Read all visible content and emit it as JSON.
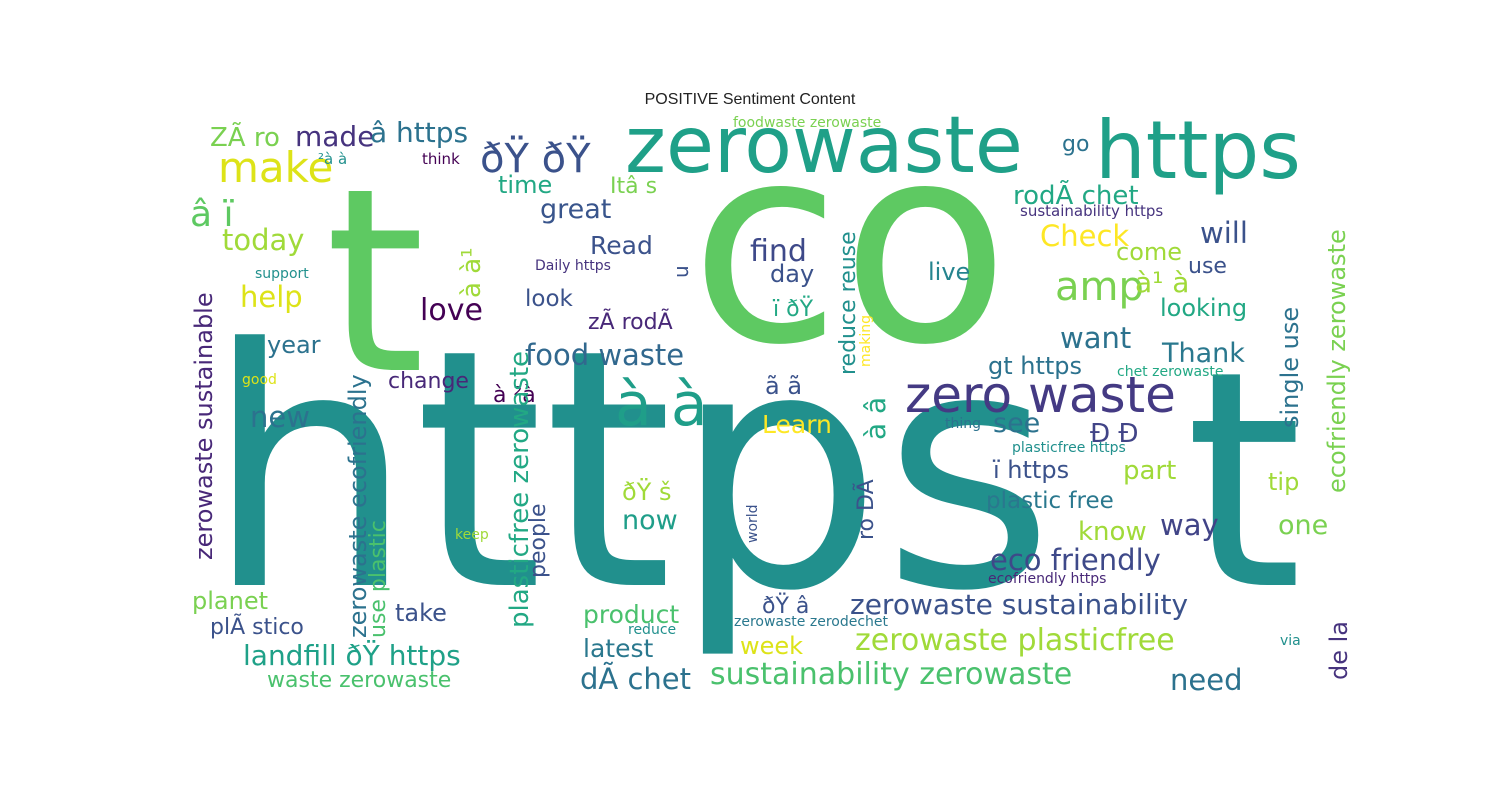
{
  "title": "POSITIVE Sentiment Content",
  "palette": "viridis",
  "words": [
    {
      "text": "https",
      "color": "#21908d"
    },
    {
      "text": "co",
      "color": "#5ec962"
    },
    {
      "text": "t",
      "color": "#5ec962"
    },
    {
      "text": "t",
      "color": "#21908d"
    },
    {
      "text": "https",
      "color": "#1fa088"
    },
    {
      "text": "zerowaste",
      "color": "#1fa088"
    },
    {
      "text": "à à",
      "color": "#1f9e89"
    },
    {
      "text": "zero waste",
      "color": "#443a83"
    },
    {
      "text": "ðŸ ðŸ",
      "color": "#3b528b"
    },
    {
      "text": "make",
      "color": "#dde318"
    },
    {
      "text": "amp",
      "color": "#7ad151"
    },
    {
      "text": "â ï",
      "color": "#5ec962"
    },
    {
      "text": "made",
      "color": "#46337e"
    },
    {
      "text": "â https",
      "color": "#2c728e"
    },
    {
      "text": "ZÃ ro",
      "color": "#7ad151"
    },
    {
      "text": "food waste",
      "color": "#31688e"
    },
    {
      "text": "eco friendly",
      "color": "#3e4989"
    },
    {
      "text": "zerowaste plasticfree",
      "color": "#a0da39"
    },
    {
      "text": "zerowaste sustainability",
      "color": "#3b528b"
    },
    {
      "text": "sustainability zerowaste",
      "color": "#4ac16d"
    },
    {
      "text": "landfill ðŸ https",
      "color": "#1fa188"
    },
    {
      "text": "dÃ chet",
      "color": "#2c728e"
    },
    {
      "text": "need",
      "color": "#2c728e"
    },
    {
      "text": "today",
      "color": "#a0da39"
    },
    {
      "text": "help",
      "color": "#dde318"
    },
    {
      "text": "love",
      "color": "#440154"
    },
    {
      "text": "find",
      "color": "#3e4989"
    },
    {
      "text": "great",
      "color": "#39558c"
    },
    {
      "text": "Read",
      "color": "#3b528b"
    },
    {
      "text": "Check",
      "color": "#fde725"
    },
    {
      "text": "will",
      "color": "#3b528b"
    },
    {
      "text": "live",
      "color": "#25848e"
    },
    {
      "text": "want",
      "color": "#2c728e"
    },
    {
      "text": "Thank",
      "color": "#2a788e"
    },
    {
      "text": "new",
      "color": "#2c728e"
    },
    {
      "text": "see",
      "color": "#2c728e"
    },
    {
      "text": "now",
      "color": "#1f9e89"
    },
    {
      "text": "way",
      "color": "#414487"
    },
    {
      "text": "one",
      "color": "#7ad151"
    },
    {
      "text": "know",
      "color": "#a0da39"
    },
    {
      "text": "part",
      "color": "#a0da39"
    },
    {
      "text": "tip",
      "color": "#a0da39"
    },
    {
      "text": "Learn",
      "color": "#fde725"
    },
    {
      "text": "week",
      "color": "#dde318"
    },
    {
      "text": "latest",
      "color": "#2a788e"
    },
    {
      "text": "product",
      "color": "#4ac16d"
    },
    {
      "text": "take",
      "color": "#3b528b"
    },
    {
      "text": "planet",
      "color": "#7ad151"
    },
    {
      "text": "plÃ stico",
      "color": "#3b528b"
    },
    {
      "text": "waste zerowaste",
      "color": "#4ac16d"
    },
    {
      "text": "year",
      "color": "#2c728e"
    },
    {
      "text": "change",
      "color": "#482878"
    },
    {
      "text": "time",
      "color": "#22a884"
    },
    {
      "text": "Itâ s",
      "color": "#7ad151"
    },
    {
      "text": "go",
      "color": "#2c728e"
    },
    {
      "text": "rodÃ chet",
      "color": "#22a884"
    },
    {
      "text": "look",
      "color": "#3b528b"
    },
    {
      "text": "zÃ rodÃ",
      "color": "#482878"
    },
    {
      "text": "day",
      "color": "#3b528b"
    },
    {
      "text": "come",
      "color": "#a0da39"
    },
    {
      "text": "use",
      "color": "#3b528b"
    },
    {
      "text": "looking",
      "color": "#22a884"
    },
    {
      "text": "gt https",
      "color": "#2c728e"
    },
    {
      "text": "plastic free",
      "color": "#2a788e"
    },
    {
      "text": "ï https",
      "color": "#3b528b"
    },
    {
      "text": "ã ã",
      "color": "#3b528b"
    },
    {
      "text": "ï ðŸ",
      "color": "#22a884"
    },
    {
      "text": "ðŸ š",
      "color": "#a0da39"
    },
    {
      "text": "ðŸ â",
      "color": "#3b528b"
    },
    {
      "text": "à¹ à",
      "color": "#a0da39"
    },
    {
      "text": "à ²à",
      "color": "#440154"
    },
    {
      "text": "Ð Ð",
      "color": "#414487"
    },
    {
      "text": "foodwaste zerowaste",
      "color": "#7ad151"
    },
    {
      "text": "sustainability https",
      "color": "#46337e"
    },
    {
      "text": "think",
      "color": "#440154"
    },
    {
      "text": "²à à",
      "color": "#21908d"
    },
    {
      "text": "support",
      "color": "#21908d"
    },
    {
      "text": "Daily https",
      "color": "#46337e"
    },
    {
      "text": "good",
      "color": "#dde318"
    },
    {
      "text": "keep",
      "color": "#a0da39"
    },
    {
      "text": "reduce",
      "color": "#21908d"
    },
    {
      "text": "zerowaste zerodechet",
      "color": "#2a788e"
    },
    {
      "text": "ecofriendly https",
      "color": "#482878"
    },
    {
      "text": "plasticfree https",
      "color": "#21908d"
    },
    {
      "text": "chet zerowaste",
      "color": "#22a884"
    },
    {
      "text": "thing",
      "color": "#2c728e"
    },
    {
      "text": "via",
      "color": "#21908d"
    },
    {
      "text": "zerowaste sustainable",
      "color": "#482878"
    },
    {
      "text": "zerowaste ecofriendly",
      "color": "#2c728e"
    },
    {
      "text": "plasticfree zerowaste",
      "color": "#22a884"
    },
    {
      "text": "use plastic",
      "color": "#4ac16d"
    },
    {
      "text": "à à¹",
      "color": "#a0da39"
    },
    {
      "text": "u",
      "color": "#3b528b"
    },
    {
      "text": "people",
      "color": "#3b528b"
    },
    {
      "text": "reduce reuse",
      "color": "#21908d"
    },
    {
      "text": "à â",
      "color": "#22a884"
    },
    {
      "text": "ro DÃ",
      "color": "#3b528b"
    },
    {
      "text": "making",
      "color": "#fde725"
    },
    {
      "text": "world",
      "color": "#3b528b"
    },
    {
      "text": "single use",
      "color": "#2c728e"
    },
    {
      "text": "ecofriendly zerowaste",
      "color": "#7ad151"
    },
    {
      "text": "de la",
      "color": "#46337e"
    }
  ]
}
